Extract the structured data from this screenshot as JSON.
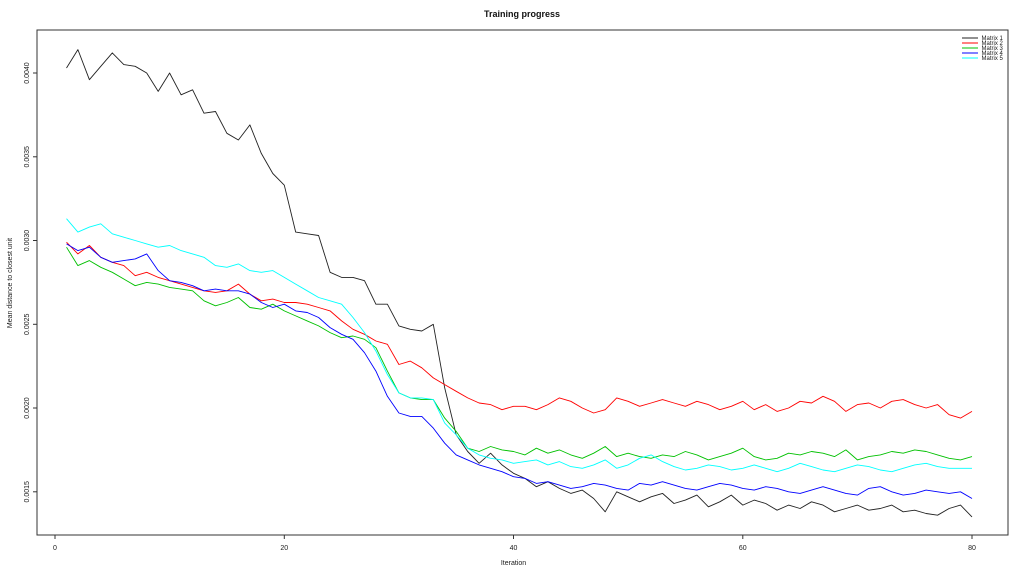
{
  "chart_data": {
    "type": "line",
    "title": "Training progress",
    "xlabel": "Iteration",
    "ylabel": "Mean distance to closest unit",
    "x_start": 1,
    "x_step": 1,
    "xlim": [
      -1.6,
      83.2
    ],
    "ylim": [
      0.00124,
      0.00426
    ],
    "grid": false,
    "x_ticks": [
      0,
      20,
      40,
      60,
      80
    ],
    "x_tick_labels": [
      "0",
      "20",
      "40",
      "60",
      "80"
    ],
    "y_ticks": [
      0.0015,
      0.002,
      0.0025,
      0.003,
      0.0035,
      0.004
    ],
    "y_tick_labels": [
      "0.0015",
      "0.0020",
      "0.0025",
      "0.0030",
      "0.0035",
      "0.0040"
    ],
    "legend_position": "topright",
    "series": [
      {
        "name": "Matrix 1",
        "color": "#222222",
        "values": [
          0.00403,
          0.00414,
          0.00396,
          0.00404,
          0.00412,
          0.00405,
          0.00404,
          0.004,
          0.00389,
          0.004,
          0.00387,
          0.0039,
          0.00376,
          0.00377,
          0.00364,
          0.0036,
          0.00369,
          0.00352,
          0.0034,
          0.00333,
          0.00305,
          0.00304,
          0.00303,
          0.00281,
          0.00278,
          0.00278,
          0.00276,
          0.00262,
          0.00262,
          0.00249,
          0.00247,
          0.00246,
          0.0025,
          0.00212,
          0.00184,
          0.00174,
          0.00167,
          0.00173,
          0.00166,
          0.00161,
          0.00158,
          0.00153,
          0.00156,
          0.00152,
          0.00149,
          0.00151,
          0.00146,
          0.00138,
          0.0015,
          0.00147,
          0.00144,
          0.00147,
          0.00149,
          0.00143,
          0.00145,
          0.00148,
          0.00141,
          0.00144,
          0.00148,
          0.00142,
          0.00145,
          0.00143,
          0.00139,
          0.00142,
          0.0014,
          0.00144,
          0.00142,
          0.00138,
          0.0014,
          0.00142,
          0.00139,
          0.0014,
          0.00142,
          0.00138,
          0.00139,
          0.00137,
          0.00136,
          0.0014,
          0.00142,
          0.00135
        ]
      },
      {
        "name": "Matrix 2",
        "color": "#ff0000",
        "values": [
          0.00299,
          0.00292,
          0.00297,
          0.0029,
          0.00287,
          0.00285,
          0.00279,
          0.00281,
          0.00278,
          0.00276,
          0.00274,
          0.00272,
          0.0027,
          0.00269,
          0.0027,
          0.00274,
          0.00268,
          0.00264,
          0.00265,
          0.00263,
          0.00263,
          0.00262,
          0.0026,
          0.00258,
          0.00252,
          0.00247,
          0.00244,
          0.0024,
          0.00238,
          0.00226,
          0.00228,
          0.00224,
          0.00218,
          0.00214,
          0.0021,
          0.00206,
          0.00203,
          0.00202,
          0.00199,
          0.00201,
          0.00201,
          0.00199,
          0.00202,
          0.00206,
          0.00204,
          0.002,
          0.00197,
          0.00199,
          0.00206,
          0.00204,
          0.00201,
          0.00203,
          0.00205,
          0.00203,
          0.00201,
          0.00204,
          0.00202,
          0.00199,
          0.00201,
          0.00204,
          0.00199,
          0.00202,
          0.00198,
          0.002,
          0.00204,
          0.00203,
          0.00207,
          0.00204,
          0.00198,
          0.00202,
          0.00203,
          0.002,
          0.00204,
          0.00205,
          0.00202,
          0.002,
          0.00202,
          0.00196,
          0.00194,
          0.00198
        ]
      },
      {
        "name": "Matrix 3",
        "color": "#00c000",
        "values": [
          0.00296,
          0.00285,
          0.00288,
          0.00284,
          0.00281,
          0.00277,
          0.00273,
          0.00275,
          0.00274,
          0.00272,
          0.00271,
          0.0027,
          0.00264,
          0.00261,
          0.00263,
          0.00266,
          0.0026,
          0.00259,
          0.00262,
          0.00258,
          0.00255,
          0.00252,
          0.00249,
          0.00245,
          0.00242,
          0.00243,
          0.00241,
          0.00236,
          0.00222,
          0.00209,
          0.00206,
          0.00205,
          0.00205,
          0.00194,
          0.00186,
          0.00176,
          0.00174,
          0.00177,
          0.00175,
          0.00174,
          0.00172,
          0.00176,
          0.00173,
          0.00175,
          0.00172,
          0.0017,
          0.00173,
          0.00177,
          0.00171,
          0.00173,
          0.00171,
          0.0017,
          0.00172,
          0.00171,
          0.00174,
          0.00172,
          0.00169,
          0.00171,
          0.00173,
          0.00176,
          0.00171,
          0.00169,
          0.0017,
          0.00173,
          0.00172,
          0.00174,
          0.00173,
          0.00171,
          0.00175,
          0.00169,
          0.00171,
          0.00172,
          0.00174,
          0.00173,
          0.00175,
          0.00174,
          0.00172,
          0.0017,
          0.00169,
          0.00171
        ]
      },
      {
        "name": "Matrix 4",
        "color": "#0000ff",
        "values": [
          0.00298,
          0.00294,
          0.00296,
          0.0029,
          0.00287,
          0.00288,
          0.00289,
          0.00292,
          0.00282,
          0.00276,
          0.00275,
          0.00273,
          0.0027,
          0.00271,
          0.0027,
          0.0027,
          0.00268,
          0.00263,
          0.0026,
          0.00262,
          0.00258,
          0.00257,
          0.00254,
          0.00248,
          0.00244,
          0.00241,
          0.00233,
          0.00222,
          0.00207,
          0.00197,
          0.00195,
          0.00195,
          0.00188,
          0.00179,
          0.00172,
          0.00169,
          0.00166,
          0.00164,
          0.00162,
          0.00159,
          0.00158,
          0.00155,
          0.00156,
          0.00154,
          0.00152,
          0.00153,
          0.00155,
          0.00154,
          0.00152,
          0.00151,
          0.00155,
          0.00154,
          0.00156,
          0.00154,
          0.00152,
          0.00151,
          0.00153,
          0.00155,
          0.00154,
          0.00152,
          0.00151,
          0.00153,
          0.00152,
          0.0015,
          0.00149,
          0.00151,
          0.00153,
          0.00151,
          0.00149,
          0.00148,
          0.00152,
          0.00153,
          0.0015,
          0.00148,
          0.00149,
          0.00151,
          0.0015,
          0.00149,
          0.0015,
          0.00146
        ]
      },
      {
        "name": "Matrix 5",
        "color": "#00ffff",
        "values": [
          0.00313,
          0.00305,
          0.00308,
          0.0031,
          0.00304,
          0.00302,
          0.003,
          0.00298,
          0.00296,
          0.00297,
          0.00294,
          0.00292,
          0.0029,
          0.00285,
          0.00284,
          0.00286,
          0.00282,
          0.00281,
          0.00282,
          0.00278,
          0.00274,
          0.0027,
          0.00266,
          0.00264,
          0.00262,
          0.00254,
          0.00245,
          0.00234,
          0.0022,
          0.00209,
          0.00206,
          0.00206,
          0.00205,
          0.00191,
          0.00184,
          0.00176,
          0.00172,
          0.0017,
          0.00169,
          0.00167,
          0.00168,
          0.00169,
          0.00166,
          0.00168,
          0.00165,
          0.00164,
          0.00166,
          0.00169,
          0.00164,
          0.00166,
          0.0017,
          0.00172,
          0.00168,
          0.00165,
          0.00163,
          0.00164,
          0.00166,
          0.00165,
          0.00163,
          0.00164,
          0.00166,
          0.00164,
          0.00162,
          0.00164,
          0.00167,
          0.00165,
          0.00163,
          0.00162,
          0.00164,
          0.00166,
          0.00165,
          0.00163,
          0.00162,
          0.00164,
          0.00166,
          0.00167,
          0.00165,
          0.00164,
          0.00164,
          0.00164
        ]
      }
    ]
  }
}
